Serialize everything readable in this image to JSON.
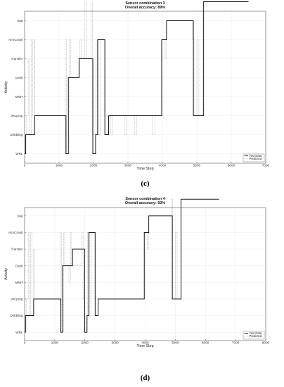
{
  "chart_data": [
    {
      "type": "line",
      "panel_label": "(c)",
      "title": "Sensor combination 3",
      "subtitle": "Overall accuracy: 89%",
      "xlabel": "Time Step",
      "ylabel": "Activity",
      "xlim": [
        0,
        7000
      ],
      "xticks": [
        0,
        1000,
        2000,
        3000,
        4000,
        5000,
        6000,
        7000
      ],
      "categories": [
        "WRL",
        "Dribbling",
        "WCprop",
        "MMH",
        "Desk",
        "Transfer",
        "ArmCrank",
        "Stat"
      ],
      "legend_position": "bottom-right",
      "grid": true,
      "series": [
        {
          "name": "Test Data",
          "color": "#000000",
          "points": [
            [
              0,
              0
            ],
            [
              30,
              0
            ],
            [
              30,
              1
            ],
            [
              290,
              1
            ],
            [
              290,
              2
            ],
            [
              1200,
              2
            ],
            [
              1200,
              0
            ],
            [
              1270,
              0
            ],
            [
              1270,
              4
            ],
            [
              1580,
              4
            ],
            [
              1580,
              5
            ],
            [
              1980,
              5
            ],
            [
              1980,
              0
            ],
            [
              2060,
              0
            ],
            [
              2060,
              1
            ],
            [
              2120,
              1
            ],
            [
              2120,
              6
            ],
            [
              2330,
              6
            ],
            [
              2330,
              1
            ],
            [
              2440,
              1
            ],
            [
              2440,
              2
            ],
            [
              3980,
              2
            ],
            [
              3980,
              6
            ],
            [
              4120,
              6
            ],
            [
              4120,
              7
            ],
            [
              4900,
              7
            ],
            [
              4900,
              2
            ],
            [
              5190,
              2
            ],
            [
              5190,
              8
            ],
            [
              6500,
              8
            ]
          ]
        },
        {
          "name": "Predicted",
          "color": "#9a9a9a",
          "points": [
            [
              0,
              0
            ],
            [
              60,
              0
            ],
            [
              60,
              2
            ],
            [
              120,
              2
            ],
            [
              120,
              5
            ],
            [
              150,
              5
            ],
            [
              150,
              1
            ],
            [
              200,
              1
            ],
            [
              200,
              6
            ],
            [
              230,
              6
            ],
            [
              230,
              2
            ],
            [
              270,
              2
            ],
            [
              270,
              6
            ],
            [
              300,
              6
            ],
            [
              300,
              2
            ],
            [
              1180,
              2
            ],
            [
              1180,
              6
            ],
            [
              1220,
              6
            ],
            [
              1220,
              0
            ],
            [
              1300,
              0
            ],
            [
              1300,
              6
            ],
            [
              1340,
              6
            ],
            [
              1340,
              4
            ],
            [
              1600,
              4
            ],
            [
              1600,
              6
            ],
            [
              1640,
              6
            ],
            [
              1640,
              5
            ],
            [
              1740,
              5
            ],
            [
              1740,
              8
            ],
            [
              1800,
              8
            ],
            [
              1800,
              5
            ],
            [
              1930,
              5
            ],
            [
              1930,
              8
            ],
            [
              1970,
              8
            ],
            [
              1970,
              1
            ],
            [
              2080,
              1
            ],
            [
              2080,
              6
            ],
            [
              2140,
              6
            ],
            [
              2140,
              1
            ],
            [
              2190,
              1
            ],
            [
              2190,
              6
            ],
            [
              2320,
              6
            ],
            [
              2320,
              2
            ],
            [
              2500,
              2
            ],
            [
              2500,
              1
            ],
            [
              2560,
              1
            ],
            [
              2560,
              2
            ],
            [
              2900,
              2
            ],
            [
              2900,
              1
            ],
            [
              2950,
              1
            ],
            [
              2950,
              2
            ],
            [
              3200,
              2
            ],
            [
              3200,
              1
            ],
            [
              3260,
              1
            ],
            [
              3260,
              2
            ],
            [
              3700,
              2
            ],
            [
              3700,
              1
            ],
            [
              3780,
              1
            ],
            [
              3780,
              2
            ],
            [
              3990,
              2
            ],
            [
              3990,
              6
            ],
            [
              4080,
              6
            ],
            [
              4080,
              5
            ],
            [
              4120,
              5
            ],
            [
              4120,
              7
            ],
            [
              4870,
              7
            ],
            [
              4870,
              6
            ],
            [
              4920,
              6
            ],
            [
              4920,
              2
            ],
            [
              5000,
              2
            ],
            [
              5000,
              6
            ],
            [
              5060,
              6
            ],
            [
              5060,
              2
            ],
            [
              5210,
              2
            ],
            [
              5210,
              8
            ],
            [
              6500,
              8
            ]
          ]
        }
      ]
    },
    {
      "type": "line",
      "panel_label": "(d)",
      "title": "Sensor combination 4",
      "subtitle": "Overall accuracy: 92%",
      "xlabel": "Time Step",
      "ylabel": "Activity",
      "xlim": [
        0,
        8000
      ],
      "xticks": [
        0,
        1000,
        2000,
        3000,
        4000,
        5000,
        6000,
        7000,
        8000
      ],
      "categories": [
        "WRL",
        "Dribbling",
        "WCprop",
        "MMH",
        "Desk",
        "Transfer",
        "ArmCrank",
        "Stat"
      ],
      "legend_position": "bottom-right",
      "grid": true,
      "series": [
        {
          "name": "Test Data",
          "color": "#000000",
          "points": [
            [
              0,
              0
            ],
            [
              30,
              0
            ],
            [
              30,
              1
            ],
            [
              300,
              1
            ],
            [
              300,
              2
            ],
            [
              1200,
              2
            ],
            [
              1200,
              0
            ],
            [
              1260,
              0
            ],
            [
              1260,
              4
            ],
            [
              1590,
              4
            ],
            [
              1590,
              5
            ],
            [
              1990,
              5
            ],
            [
              1990,
              0
            ],
            [
              2070,
              0
            ],
            [
              2070,
              1
            ],
            [
              2130,
              1
            ],
            [
              2130,
              6
            ],
            [
              2340,
              6
            ],
            [
              2340,
              1
            ],
            [
              2440,
              1
            ],
            [
              2440,
              2
            ],
            [
              3970,
              2
            ],
            [
              3970,
              6
            ],
            [
              4120,
              6
            ],
            [
              4120,
              7
            ],
            [
              4900,
              7
            ],
            [
              4900,
              2
            ],
            [
              5190,
              2
            ],
            [
              5190,
              8
            ],
            [
              6450,
              8
            ]
          ]
        },
        {
          "name": "Predicted",
          "color": "#9a9a9a",
          "points": [
            [
              0,
              0
            ],
            [
              60,
              0
            ],
            [
              60,
              2
            ],
            [
              120,
              2
            ],
            [
              120,
              6
            ],
            [
              150,
              6
            ],
            [
              150,
              1
            ],
            [
              200,
              1
            ],
            [
              200,
              6
            ],
            [
              240,
              6
            ],
            [
              240,
              2
            ],
            [
              300,
              2
            ],
            [
              300,
              5
            ],
            [
              330,
              5
            ],
            [
              330,
              2
            ],
            [
              1180,
              2
            ],
            [
              1180,
              6
            ],
            [
              1220,
              6
            ],
            [
              1220,
              0
            ],
            [
              1300,
              0
            ],
            [
              1300,
              6
            ],
            [
              1330,
              6
            ],
            [
              1330,
              4
            ],
            [
              1470,
              4
            ],
            [
              1470,
              3
            ],
            [
              1520,
              3
            ],
            [
              1520,
              6
            ],
            [
              1560,
              6
            ],
            [
              1560,
              4
            ],
            [
              1900,
              4
            ],
            [
              1900,
              6
            ],
            [
              1940,
              6
            ],
            [
              1940,
              2
            ],
            [
              2000,
              2
            ],
            [
              2000,
              0
            ],
            [
              2080,
              0
            ],
            [
              2080,
              6
            ],
            [
              2160,
              6
            ],
            [
              2160,
              1
            ],
            [
              2200,
              1
            ],
            [
              2200,
              6
            ],
            [
              2330,
              6
            ],
            [
              2330,
              2
            ],
            [
              3990,
              2
            ],
            [
              3990,
              6
            ],
            [
              4070,
              6
            ],
            [
              4070,
              5
            ],
            [
              4120,
              5
            ],
            [
              4120,
              7
            ],
            [
              4870,
              7
            ],
            [
              4870,
              8
            ],
            [
              4910,
              8
            ],
            [
              4910,
              2
            ],
            [
              5000,
              2
            ],
            [
              5000,
              6
            ],
            [
              5060,
              6
            ],
            [
              5060,
              2
            ],
            [
              5200,
              2
            ],
            [
              5200,
              8
            ],
            [
              6450,
              8
            ]
          ]
        }
      ]
    }
  ]
}
